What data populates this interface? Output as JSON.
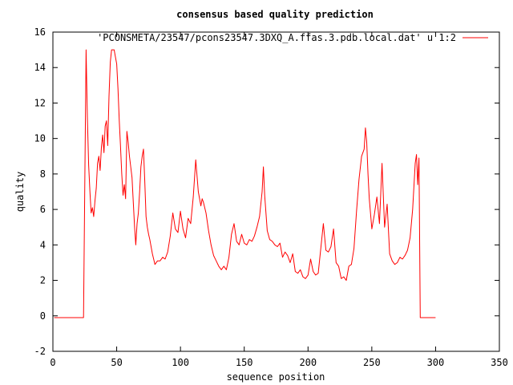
{
  "chart_data": {
    "type": "line",
    "title": "consensus based quality prediction",
    "xlabel": "sequence position",
    "ylabel": "quality",
    "xlim": [
      0,
      350
    ],
    "ylim": [
      -2,
      16
    ],
    "xticks": [
      0,
      50,
      100,
      150,
      200,
      250,
      300,
      350
    ],
    "yticks": [
      -2,
      0,
      2,
      4,
      6,
      8,
      10,
      12,
      14,
      16
    ],
    "legend_position": "top-right",
    "grid": false,
    "series": [
      {
        "name": "'PCONSMETA/23547/pcons23547.3DXQ_A.ffas.3.pdb.local.dat' u 1:2",
        "color": "#ff0000",
        "x": [
          1,
          24,
          25,
          26,
          27,
          28,
          29,
          30,
          31,
          32,
          33,
          34,
          35,
          36,
          37,
          38,
          39,
          40,
          41,
          42,
          43,
          44,
          45,
          46,
          47,
          48,
          49,
          50,
          51,
          52,
          53,
          54,
          55,
          56,
          57,
          58,
          59,
          60,
          61,
          62,
          63,
          64,
          65,
          66,
          67,
          68,
          69,
          70,
          71,
          72,
          73,
          74,
          75,
          76,
          77,
          78,
          79,
          80,
          82,
          84,
          86,
          88,
          90,
          92,
          94,
          96,
          98,
          100,
          102,
          104,
          106,
          108,
          110,
          112,
          114,
          116,
          117,
          118,
          120,
          122,
          124,
          126,
          128,
          130,
          132,
          134,
          136,
          138,
          140,
          142,
          144,
          146,
          148,
          150,
          152,
          154,
          156,
          158,
          160,
          162,
          163,
          164,
          165,
          166,
          168,
          170,
          172,
          174,
          176,
          178,
          180,
          182,
          184,
          186,
          188,
          190,
          192,
          194,
          196,
          198,
          200,
          202,
          204,
          206,
          208,
          210,
          212,
          214,
          216,
          218,
          220,
          222,
          224,
          226,
          228,
          230,
          232,
          234,
          236,
          238,
          240,
          242,
          244,
          245,
          246,
          247,
          248,
          250,
          252,
          254,
          256,
          258,
          260,
          262,
          264,
          266,
          268,
          270,
          272,
          274,
          276,
          278,
          280,
          282,
          284,
          285,
          286,
          287,
          288,
          289,
          300
        ],
        "y": [
          -0.1,
          -0.1,
          7.5,
          15.0,
          11.2,
          8.5,
          7.0,
          5.8,
          6.1,
          5.6,
          6.5,
          7.2,
          8.6,
          9.0,
          8.2,
          9.5,
          10.2,
          9.2,
          10.7,
          11.0,
          9.6,
          12.4,
          14.3,
          15.0,
          15.0,
          15.0,
          14.6,
          14.2,
          12.8,
          11.0,
          9.6,
          8.0,
          6.8,
          7.4,
          6.6,
          10.4,
          9.8,
          9.0,
          8.4,
          7.8,
          6.4,
          5.0,
          4.0,
          5.2,
          5.8,
          7.0,
          8.4,
          9.0,
          9.4,
          7.6,
          5.6,
          5.0,
          4.6,
          4.3,
          3.9,
          3.5,
          3.2,
          2.9,
          3.1,
          3.1,
          3.3,
          3.2,
          3.6,
          4.5,
          5.8,
          4.9,
          4.7,
          5.9,
          4.9,
          4.4,
          5.5,
          5.2,
          6.7,
          8.8,
          7.0,
          6.2,
          6.6,
          6.4,
          5.8,
          4.8,
          4.0,
          3.4,
          3.1,
          2.8,
          2.6,
          2.8,
          2.6,
          3.3,
          4.6,
          5.2,
          4.2,
          4.0,
          4.6,
          4.1,
          4.0,
          4.3,
          4.2,
          4.5,
          5.0,
          5.6,
          6.3,
          7.0,
          8.4,
          6.8,
          4.8,
          4.3,
          4.2,
          4.0,
          3.9,
          4.1,
          3.3,
          3.6,
          3.4,
          3.0,
          3.5,
          2.5,
          2.4,
          2.6,
          2.2,
          2.1,
          2.3,
          3.2,
          2.5,
          2.3,
          2.4,
          3.8,
          5.2,
          3.7,
          3.6,
          3.9,
          4.9,
          3.0,
          2.8,
          2.1,
          2.2,
          2.0,
          2.8,
          2.9,
          3.8,
          5.9,
          7.7,
          9.0,
          9.4,
          10.6,
          9.8,
          8.0,
          6.6,
          4.9,
          5.7,
          6.7,
          5.2,
          8.6,
          5.0,
          6.3,
          3.5,
          3.1,
          2.9,
          3.0,
          3.3,
          3.2,
          3.4,
          3.7,
          4.4,
          6.0,
          8.6,
          9.1,
          7.4,
          8.9,
          -0.1,
          -0.1,
          -0.1
        ]
      }
    ]
  }
}
